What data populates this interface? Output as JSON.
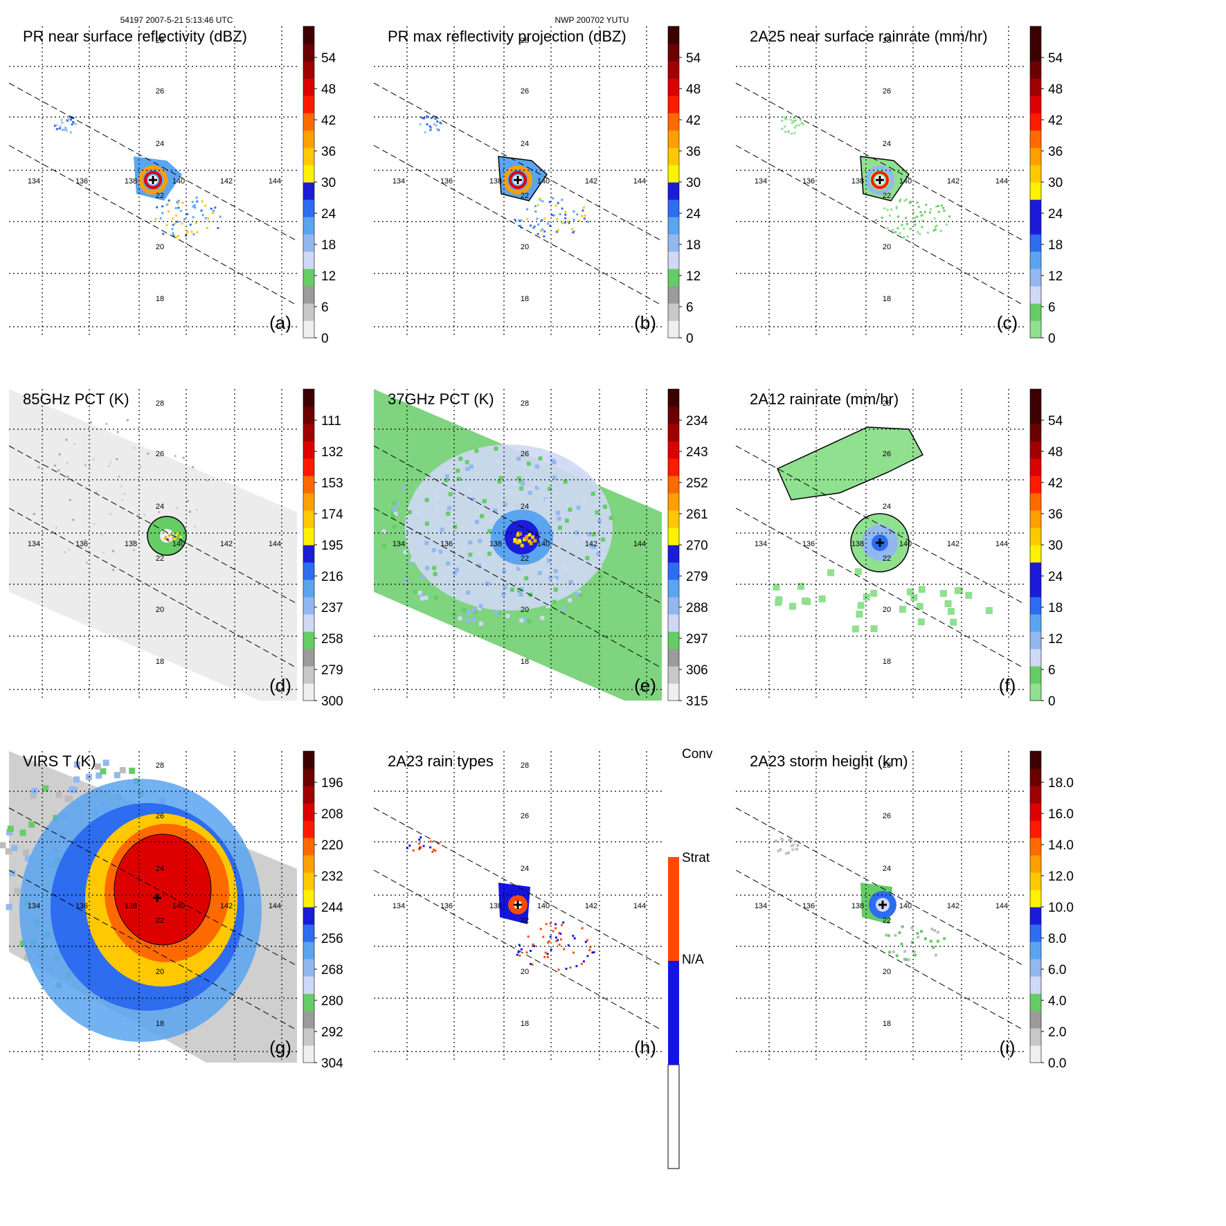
{
  "header": {
    "orbit_time": "54197 2007-5-21 5:13:46 UTC",
    "storm": "NWP 200702 YUTU"
  },
  "grid_labels": {
    "lat": [
      "28",
      "26",
      "24",
      "22",
      "20",
      "18"
    ],
    "lon": [
      "134",
      "136",
      "138",
      "140",
      "142",
      "144"
    ]
  },
  "colors": {
    "gray_dark": "#9b9b9b",
    "gray_mid": "#c8c8c8",
    "gray_light": "#efefef",
    "green_dark": "#66cc66",
    "green_light": "#8fe08f",
    "lightblue_1": "#cfd8f5",
    "lightblue_2": "#93b8ef",
    "lightblue_3": "#5ba5f0",
    "blue_1": "#2e6cf0",
    "blue_2": "#1b1bd8",
    "yellow": "#fff200",
    "yellow_orange": "#ffc800",
    "orange_1": "#ff9f00",
    "orange_2": "#ff6a00",
    "red_1": "#ff1a00",
    "red_2": "#dd0000",
    "darkred_1": "#a00000",
    "darkred_2": "#6a0000",
    "darkred_3": "#3d0000",
    "rt_conv": "#ff4a00",
    "rt_strat": "#1414e0",
    "rt_na": "#ffffff"
  },
  "panels": [
    {
      "id": "a",
      "letter": "(a)",
      "title": "PR near surface reflectivity (dBZ)",
      "style": "swath",
      "colorbar": {
        "type": "dbz",
        "ticks": [
          "0",
          "6",
          "12",
          "18",
          "24",
          "30",
          "36",
          "42",
          "48",
          "54"
        ]
      }
    },
    {
      "id": "b",
      "letter": "(b)",
      "title": "PR max reflectivity projection (dBZ)",
      "style": "swath-contour",
      "colorbar": {
        "type": "dbz",
        "ticks": [
          "0",
          "6",
          "12",
          "18",
          "24",
          "30",
          "36",
          "42",
          "48",
          "54"
        ]
      }
    },
    {
      "id": "c",
      "letter": "(c)",
      "title": "2A25 near surface rainrate (mm/hr)",
      "style": "swath-rain",
      "colorbar": {
        "type": "rain",
        "ticks": [
          "0",
          "6",
          "12",
          "18",
          "24",
          "30",
          "36",
          "42",
          "48",
          "54"
        ]
      }
    },
    {
      "id": "d",
      "letter": "(d)",
      "title": "85GHz PCT (K)",
      "style": "pct85",
      "colorbar": {
        "type": "tb",
        "ticks": [
          "300",
          "279",
          "258",
          "237",
          "216",
          "195",
          "174",
          "153",
          "132",
          "111"
        ]
      }
    },
    {
      "id": "e",
      "letter": "(e)",
      "title": "37GHz PCT (K)",
      "style": "pct37",
      "colorbar": {
        "type": "tb",
        "ticks": [
          "315",
          "306",
          "297",
          "288",
          "279",
          "270",
          "261",
          "252",
          "243",
          "234"
        ]
      }
    },
    {
      "id": "f",
      "letter": "(f)",
      "title": "2A12 rainrate (mm/hr)",
      "style": "tmi-rain",
      "colorbar": {
        "type": "rain",
        "ticks": [
          "0",
          "6",
          "12",
          "18",
          "24",
          "30",
          "36",
          "42",
          "48",
          "54"
        ]
      }
    },
    {
      "id": "g",
      "letter": "(g)",
      "title": "VIRS T   (K)",
      "style": "virs",
      "colorbar": {
        "type": "tb",
        "ticks": [
          "304",
          "292",
          "280",
          "268",
          "256",
          "244",
          "232",
          "220",
          "208",
          "196"
        ]
      }
    },
    {
      "id": "h",
      "letter": "(h)",
      "title": "2A23 rain types",
      "style": "raintype",
      "colorbar": {
        "type": "raintype",
        "ticks": [
          "N/A",
          "Strat",
          "Conv"
        ]
      }
    },
    {
      "id": "i",
      "letter": "(i)",
      "title": "2A23 storm height (km)",
      "style": "height",
      "colorbar": {
        "type": "height",
        "ticks": [
          "0.0",
          "2.0",
          "4.0",
          "6.0",
          "8.0",
          "10.0",
          "12.0",
          "14.0",
          "16.0",
          "18.0"
        ]
      }
    }
  ]
}
